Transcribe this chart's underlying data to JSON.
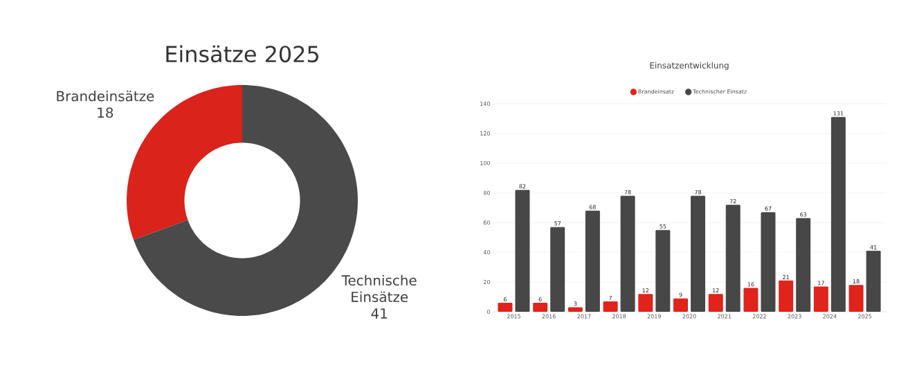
{
  "chart_data": [
    {
      "type": "donut",
      "title": "Einsätze 2025",
      "categories": [
        "Brandeinsätze",
        "Technische Einsätze"
      ],
      "values": [
        18,
        41
      ],
      "colors": [
        "#d9231b",
        "#4a4a4a"
      ],
      "data_labels": true
    },
    {
      "type": "bar",
      "title": "Einsatzentwicklung",
      "categories": [
        "2015",
        "2016",
        "2017",
        "2018",
        "2019",
        "2020",
        "2021",
        "2022",
        "2023",
        "2024",
        "2025"
      ],
      "series": [
        {
          "name": "Brandeinsatz",
          "color": "#e0231b",
          "values": [
            6,
            6,
            3,
            7,
            12,
            9,
            12,
            16,
            21,
            17,
            18
          ]
        },
        {
          "name": "Technischer Einsatz",
          "color": "#474747",
          "values": [
            82,
            57,
            68,
            78,
            55,
            78,
            72,
            67,
            63,
            131,
            41
          ]
        }
      ],
      "ylim": [
        0,
        140
      ],
      "yticks": [
        0,
        20,
        40,
        60,
        80,
        100,
        120,
        140
      ],
      "grid": "y",
      "legend": "top",
      "data_labels": true
    }
  ]
}
